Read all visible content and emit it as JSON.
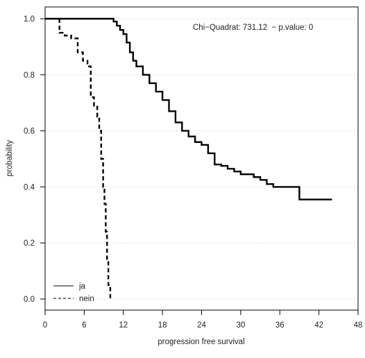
{
  "chart_data": {
    "type": "line",
    "subtype": "kaplan-meier step curve",
    "title": "",
    "annotation": "Chi−Quadrat: 731.12  − p.value: 0",
    "xlabel": "progression free survival",
    "ylabel": "probability",
    "xlim": [
      0,
      48
    ],
    "ylim": [
      0,
      1
    ],
    "xticks": [
      0,
      6,
      12,
      18,
      24,
      30,
      36,
      42,
      48
    ],
    "xtick_labels": [
      "0",
      "6",
      "12",
      "18",
      "24",
      "30",
      "36",
      "42",
      "48"
    ],
    "yticks": [
      0,
      0.2,
      0.4,
      0.6,
      0.8,
      1
    ],
    "ytick_labels": [
      "0.0",
      "0.2",
      "0.4",
      "0.6",
      "0.8",
      "1.0"
    ],
    "grid": {
      "horizontal": true,
      "vertical": false,
      "style": "dotted"
    },
    "legend": {
      "position": "bottom-left",
      "entries": [
        "ja",
        "nein"
      ]
    },
    "series": [
      {
        "name": "ja",
        "line_style": "solid",
        "color": "#000000",
        "points": [
          [
            0,
            1.0
          ],
          [
            10.0,
            1.0
          ],
          [
            10.5,
            0.99
          ],
          [
            11.0,
            0.975
          ],
          [
            11.5,
            0.96
          ],
          [
            12.0,
            0.945
          ],
          [
            12.5,
            0.915
          ],
          [
            13.0,
            0.88
          ],
          [
            13.5,
            0.85
          ],
          [
            14.0,
            0.83
          ],
          [
            15.0,
            0.8
          ],
          [
            16.0,
            0.77
          ],
          [
            17.0,
            0.74
          ],
          [
            18.0,
            0.71
          ],
          [
            19.0,
            0.67
          ],
          [
            20.0,
            0.63
          ],
          [
            21.0,
            0.6
          ],
          [
            22.0,
            0.58
          ],
          [
            23.0,
            0.56
          ],
          [
            24.0,
            0.55
          ],
          [
            25.0,
            0.52
          ],
          [
            26.0,
            0.48
          ],
          [
            27.0,
            0.475
          ],
          [
            28.0,
            0.465
          ],
          [
            29.0,
            0.455
          ],
          [
            30.0,
            0.445
          ],
          [
            32.0,
            0.435
          ],
          [
            33.0,
            0.425
          ],
          [
            34.0,
            0.41
          ],
          [
            35.0,
            0.4
          ],
          [
            39.0,
            0.4
          ],
          [
            39.0,
            0.355
          ],
          [
            44.0,
            0.355
          ]
        ]
      },
      {
        "name": "nein",
        "line_style": "dashed",
        "color": "#000000",
        "points": [
          [
            2.2,
            1.0
          ],
          [
            2.2,
            0.95
          ],
          [
            3.0,
            0.95
          ],
          [
            3.0,
            0.94
          ],
          [
            4.0,
            0.94
          ],
          [
            4.0,
            0.93
          ],
          [
            5.0,
            0.93
          ],
          [
            5.0,
            0.88
          ],
          [
            5.8,
            0.88
          ],
          [
            5.8,
            0.85
          ],
          [
            6.5,
            0.85
          ],
          [
            6.5,
            0.83
          ],
          [
            7.0,
            0.83
          ],
          [
            7.0,
            0.72
          ],
          [
            7.5,
            0.72
          ],
          [
            7.5,
            0.69
          ],
          [
            8.0,
            0.65
          ],
          [
            8.3,
            0.6
          ],
          [
            8.6,
            0.5
          ],
          [
            8.9,
            0.4
          ],
          [
            9.1,
            0.34
          ],
          [
            9.3,
            0.24
          ],
          [
            9.5,
            0.14
          ],
          [
            9.7,
            0.05
          ],
          [
            10.0,
            0.0
          ]
        ]
      }
    ]
  }
}
